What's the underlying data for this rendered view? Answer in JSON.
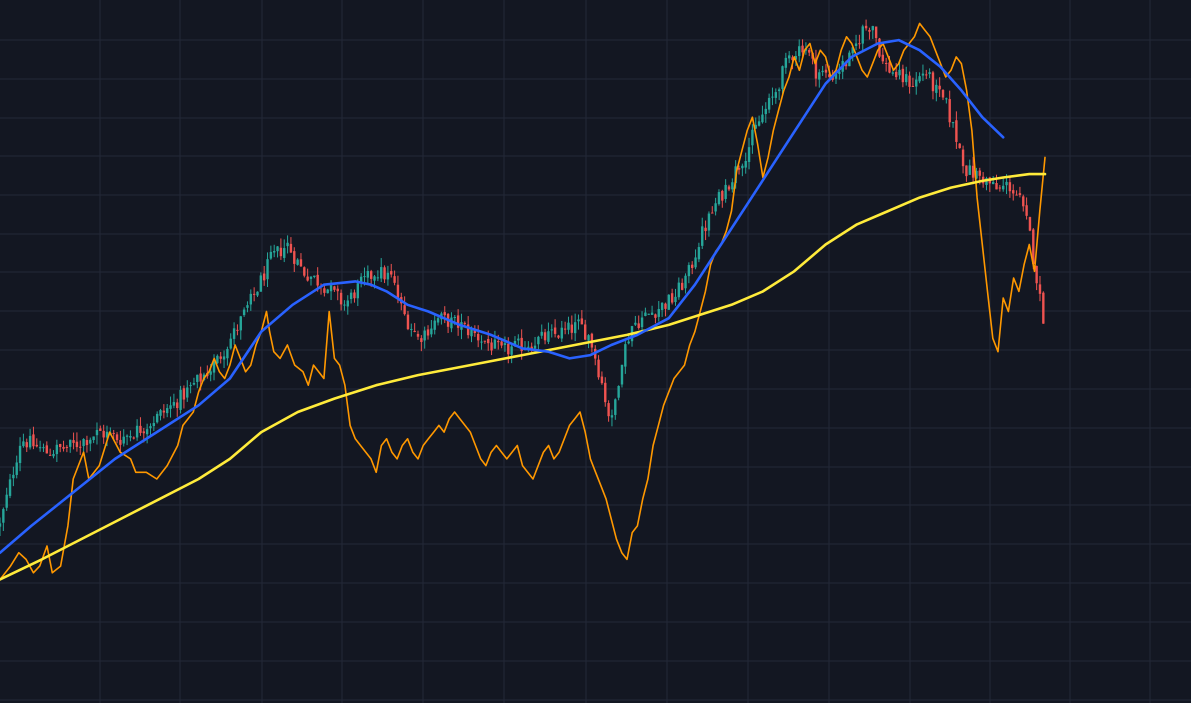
{
  "chart_data": {
    "type": "candlestick",
    "grid": true,
    "legend": "none",
    "title": "",
    "xlabel": "",
    "ylabel": "",
    "x_domain": [
      0,
      1000
    ],
    "y_domain": [
      0,
      100
    ],
    "colors": {
      "background": "#131722",
      "grid": "#232938",
      "up": "#26a69a",
      "down": "#ef5350",
      "ma_fast": "#2962ff",
      "ma_slow": "#ffeb3b",
      "oscillator": "#ff9800"
    },
    "price_path": [
      [
        0,
        23
      ],
      [
        20,
        36
      ],
      [
        45,
        34
      ],
      [
        70,
        35
      ],
      [
        95,
        37
      ],
      [
        115,
        36
      ],
      [
        140,
        38
      ],
      [
        165,
        41
      ],
      [
        185,
        44
      ],
      [
        205,
        47
      ],
      [
        225,
        52
      ],
      [
        245,
        58
      ],
      [
        260,
        63
      ],
      [
        275,
        65
      ],
      [
        290,
        61
      ],
      [
        310,
        59
      ],
      [
        330,
        56
      ],
      [
        345,
        59
      ],
      [
        360,
        61
      ],
      [
        375,
        60
      ],
      [
        385,
        55
      ],
      [
        400,
        51
      ],
      [
        420,
        54
      ],
      [
        440,
        53
      ],
      [
        460,
        51
      ],
      [
        480,
        49
      ],
      [
        500,
        50
      ],
      [
        520,
        51
      ],
      [
        540,
        52
      ],
      [
        555,
        53
      ],
      [
        565,
        51
      ],
      [
        575,
        45
      ],
      [
        585,
        38
      ],
      [
        595,
        48
      ],
      [
        605,
        53
      ],
      [
        625,
        55
      ],
      [
        645,
        57
      ],
      [
        660,
        61
      ],
      [
        670,
        66
      ],
      [
        685,
        71
      ],
      [
        700,
        75
      ],
      [
        715,
        79
      ],
      [
        725,
        83
      ],
      [
        740,
        87
      ],
      [
        755,
        93
      ],
      [
        770,
        95
      ],
      [
        780,
        91
      ],
      [
        795,
        90
      ],
      [
        815,
        93
      ],
      [
        825,
        97
      ],
      [
        835,
        98
      ],
      [
        845,
        92
      ],
      [
        860,
        90
      ],
      [
        875,
        89
      ],
      [
        885,
        91
      ],
      [
        895,
        88
      ],
      [
        905,
        86
      ],
      [
        915,
        81
      ],
      [
        925,
        76
      ],
      [
        940,
        75
      ],
      [
        955,
        73
      ],
      [
        965,
        74
      ],
      [
        975,
        72
      ],
      [
        985,
        67
      ],
      [
        995,
        57
      ],
      [
        1000,
        53
      ]
    ],
    "series": [
      {
        "type": "line",
        "color": "#2962ff",
        "points": [
          [
            0,
            19
          ],
          [
            30,
            23
          ],
          [
            70,
            28
          ],
          [
            110,
            33
          ],
          [
            150,
            37
          ],
          [
            190,
            41
          ],
          [
            220,
            45
          ],
          [
            250,
            52
          ],
          [
            280,
            56
          ],
          [
            310,
            59
          ],
          [
            340,
            59.5
          ],
          [
            355,
            59
          ],
          [
            370,
            58
          ],
          [
            390,
            56
          ],
          [
            410,
            55
          ],
          [
            440,
            53
          ],
          [
            470,
            51.5
          ],
          [
            500,
            49.5
          ],
          [
            525,
            49
          ],
          [
            545,
            48
          ],
          [
            565,
            48.5
          ],
          [
            585,
            50
          ],
          [
            610,
            51.5
          ],
          [
            640,
            54
          ],
          [
            665,
            59
          ],
          [
            690,
            65
          ],
          [
            715,
            71
          ],
          [
            740,
            77
          ],
          [
            765,
            83
          ],
          [
            790,
            89
          ],
          [
            815,
            93
          ],
          [
            840,
            95
          ],
          [
            860,
            95.5
          ],
          [
            880,
            94
          ],
          [
            900,
            91.5
          ],
          [
            920,
            88
          ],
          [
            940,
            84
          ],
          [
            960,
            81
          ]
        ]
      },
      {
        "type": "line",
        "color": "#ffeb3b",
        "points": [
          [
            0,
            15
          ],
          [
            40,
            18
          ],
          [
            90,
            22
          ],
          [
            140,
            26
          ],
          [
            190,
            30
          ],
          [
            220,
            33
          ],
          [
            250,
            37
          ],
          [
            285,
            40
          ],
          [
            320,
            42
          ],
          [
            360,
            44
          ],
          [
            400,
            45.5
          ],
          [
            450,
            47
          ],
          [
            500,
            48.5
          ],
          [
            550,
            50
          ],
          [
            600,
            51.5
          ],
          [
            640,
            53
          ],
          [
            670,
            54.5
          ],
          [
            700,
            56
          ],
          [
            730,
            58
          ],
          [
            760,
            61
          ],
          [
            790,
            65
          ],
          [
            820,
            68
          ],
          [
            850,
            70
          ],
          [
            880,
            72
          ],
          [
            910,
            73.5
          ],
          [
            940,
            74.5
          ],
          [
            960,
            75
          ],
          [
            985,
            75.5
          ],
          [
            1000,
            75.5
          ]
        ]
      },
      {
        "type": "line",
        "color": "#ff9800",
        "points": [
          [
            0,
            15
          ],
          [
            10,
            17
          ],
          [
            18,
            19
          ],
          [
            25,
            18
          ],
          [
            32,
            16
          ],
          [
            38,
            17
          ],
          [
            45,
            20
          ],
          [
            50,
            16
          ],
          [
            58,
            17
          ],
          [
            65,
            23
          ],
          [
            70,
            30
          ],
          [
            80,
            34
          ],
          [
            85,
            30
          ],
          [
            95,
            32
          ],
          [
            105,
            37
          ],
          [
            115,
            34
          ],
          [
            125,
            33
          ],
          [
            130,
            31
          ],
          [
            140,
            31
          ],
          [
            150,
            30
          ],
          [
            160,
            32
          ],
          [
            170,
            35
          ],
          [
            175,
            38
          ],
          [
            180,
            39
          ],
          [
            185,
            40
          ],
          [
            190,
            43
          ],
          [
            195,
            45
          ],
          [
            200,
            46
          ],
          [
            205,
            48
          ],
          [
            210,
            46
          ],
          [
            215,
            45
          ],
          [
            220,
            47
          ],
          [
            225,
            50
          ],
          [
            230,
            48
          ],
          [
            235,
            46
          ],
          [
            240,
            47
          ],
          [
            245,
            50
          ],
          [
            250,
            52
          ],
          [
            255,
            55
          ],
          [
            258,
            52
          ],
          [
            262,
            49
          ],
          [
            268,
            48
          ],
          [
            275,
            50
          ],
          [
            282,
            47
          ],
          [
            290,
            46
          ],
          [
            295,
            44
          ],
          [
            300,
            47
          ],
          [
            310,
            45
          ],
          [
            315,
            55
          ],
          [
            320,
            48
          ],
          [
            325,
            47
          ],
          [
            330,
            44
          ],
          [
            335,
            38
          ],
          [
            340,
            36
          ],
          [
            345,
            35
          ],
          [
            350,
            34
          ],
          [
            355,
            33
          ],
          [
            360,
            31
          ],
          [
            365,
            35
          ],
          [
            370,
            36
          ],
          [
            375,
            34
          ],
          [
            380,
            33
          ],
          [
            385,
            35
          ],
          [
            390,
            36
          ],
          [
            395,
            34
          ],
          [
            400,
            33
          ],
          [
            405,
            35
          ],
          [
            410,
            36
          ],
          [
            415,
            37
          ],
          [
            420,
            38
          ],
          [
            425,
            37
          ],
          [
            430,
            39
          ],
          [
            435,
            40
          ],
          [
            440,
            39
          ],
          [
            445,
            38
          ],
          [
            450,
            37
          ],
          [
            455,
            35
          ],
          [
            460,
            33
          ],
          [
            465,
            32
          ],
          [
            470,
            34
          ],
          [
            475,
            35
          ],
          [
            480,
            34
          ],
          [
            485,
            33
          ],
          [
            490,
            34
          ],
          [
            495,
            35
          ],
          [
            500,
            32
          ],
          [
            505,
            31
          ],
          [
            510,
            30
          ],
          [
            515,
            32
          ],
          [
            520,
            34
          ],
          [
            525,
            35
          ],
          [
            530,
            33
          ],
          [
            535,
            34
          ],
          [
            540,
            36
          ],
          [
            545,
            38
          ],
          [
            550,
            39
          ],
          [
            555,
            40
          ],
          [
            560,
            37
          ],
          [
            565,
            33
          ],
          [
            570,
            31
          ],
          [
            575,
            29
          ],
          [
            580,
            27
          ],
          [
            585,
            24
          ],
          [
            590,
            21
          ],
          [
            595,
            19
          ],
          [
            600,
            18
          ],
          [
            605,
            22
          ],
          [
            610,
            23
          ],
          [
            615,
            27
          ],
          [
            620,
            30
          ],
          [
            625,
            35
          ],
          [
            630,
            38
          ],
          [
            635,
            41
          ],
          [
            640,
            43
          ],
          [
            645,
            45
          ],
          [
            650,
            46
          ],
          [
            655,
            47
          ],
          [
            660,
            50
          ],
          [
            665,
            52
          ],
          [
            670,
            55
          ],
          [
            675,
            58
          ],
          [
            680,
            62
          ],
          [
            685,
            64
          ],
          [
            690,
            65
          ],
          [
            695,
            67
          ],
          [
            700,
            70
          ],
          [
            705,
            76
          ],
          [
            710,
            79
          ],
          [
            715,
            82
          ],
          [
            720,
            84
          ],
          [
            725,
            80
          ],
          [
            730,
            75
          ],
          [
            735,
            78
          ],
          [
            740,
            82
          ],
          [
            745,
            85
          ],
          [
            750,
            88
          ],
          [
            755,
            90
          ],
          [
            760,
            93
          ],
          [
            765,
            91
          ],
          [
            770,
            94
          ],
          [
            775,
            95
          ],
          [
            780,
            92
          ],
          [
            785,
            94
          ],
          [
            790,
            93
          ],
          [
            795,
            90
          ],
          [
            800,
            91
          ],
          [
            805,
            94
          ],
          [
            810,
            96
          ],
          [
            815,
            95
          ],
          [
            820,
            93
          ],
          [
            825,
            91
          ],
          [
            830,
            90
          ],
          [
            835,
            92
          ],
          [
            840,
            94
          ],
          [
            845,
            95
          ],
          [
            850,
            93
          ],
          [
            855,
            91
          ],
          [
            860,
            92
          ],
          [
            865,
            94
          ],
          [
            870,
            95
          ],
          [
            875,
            96
          ],
          [
            880,
            98
          ],
          [
            885,
            97
          ],
          [
            890,
            96
          ],
          [
            895,
            94
          ],
          [
            900,
            92
          ],
          [
            905,
            90
          ],
          [
            910,
            91
          ],
          [
            915,
            93
          ],
          [
            920,
            92
          ],
          [
            925,
            88
          ],
          [
            930,
            82
          ],
          [
            935,
            72
          ],
          [
            940,
            65
          ],
          [
            945,
            58
          ],
          [
            950,
            51
          ],
          [
            955,
            49
          ],
          [
            960,
            57
          ],
          [
            965,
            55
          ],
          [
            970,
            60
          ],
          [
            975,
            58
          ],
          [
            980,
            62
          ],
          [
            985,
            65
          ],
          [
            990,
            61
          ],
          [
            995,
            70
          ],
          [
            1000,
            78
          ]
        ]
      }
    ]
  }
}
